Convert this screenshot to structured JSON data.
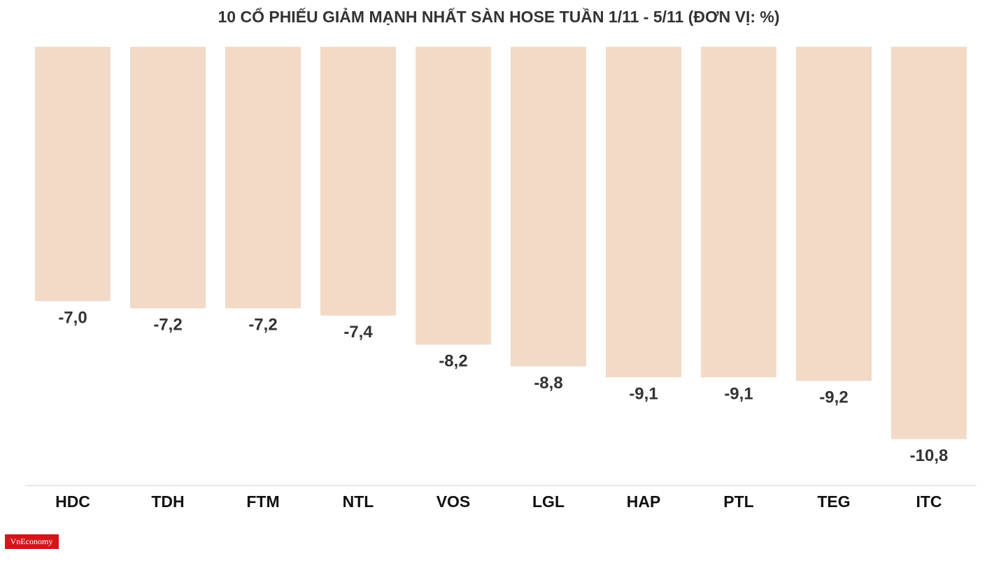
{
  "chart_data": {
    "type": "bar",
    "title": "10 CỔ PHIẾU GIẢM MẠNH NHẤT SÀN HOSE TUẦN 1/11 - 5/11 (ĐƠN VỊ: %)",
    "categories": [
      "HDC",
      "TDH",
      "FTM",
      "NTL",
      "VOS",
      "LGL",
      "HAP",
      "PTL",
      "TEG",
      "ITC"
    ],
    "values": [
      -7.0,
      -7.2,
      -7.2,
      -7.4,
      -8.2,
      -8.8,
      -9.1,
      -9.1,
      -9.2,
      -10.8
    ],
    "value_labels": [
      "-7,0",
      "-7,2",
      "-7,2",
      "-7,4",
      "-8,2",
      "-8,8",
      "-9,1",
      "-9,1",
      "-9,2",
      "-10,8"
    ],
    "color": "#f2dac7",
    "ylim": [
      -12,
      0
    ]
  },
  "logo": "VnEconomy"
}
